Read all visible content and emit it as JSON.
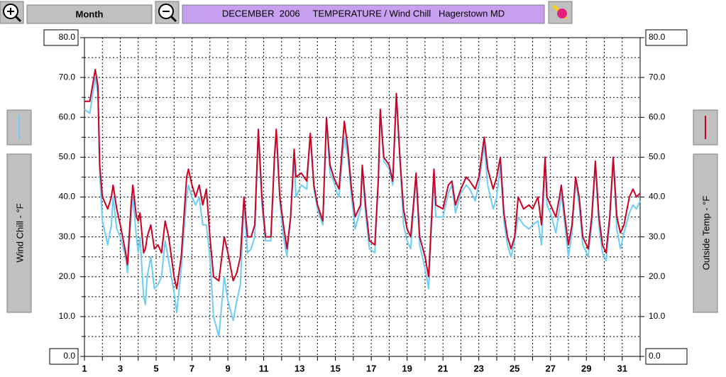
{
  "toolbar": {
    "period_button": "Month"
  },
  "chart_data": {
    "type": "line",
    "title": "DECEMBER  2006     TEMPERATURE / Wind Chill   Hagerstown MD",
    "y_axis_label": "Wind Chill - °F",
    "y2_axis_label": "Outside Temp - °F",
    "xlim": [
      1,
      32
    ],
    "xticks": [
      1,
      3,
      5,
      7,
      9,
      11,
      13,
      15,
      17,
      19,
      21,
      23,
      25,
      27,
      29,
      31
    ],
    "x_minor_ticks": [
      2,
      4,
      6,
      8,
      10,
      12,
      14,
      16,
      18,
      20,
      22,
      24,
      26,
      28,
      30,
      32
    ],
    "ylim": [
      0,
      80
    ],
    "yticks": [
      {
        "value": 0,
        "label": "0.0"
      },
      {
        "value": 10,
        "label": "10.0"
      },
      {
        "value": 20,
        "label": "20.0"
      },
      {
        "value": 30,
        "label": "30.0"
      },
      {
        "value": 40,
        "label": "40.0"
      },
      {
        "value": 50,
        "label": "50.0"
      },
      {
        "value": 60,
        "label": "60.0"
      },
      {
        "value": 70,
        "label": "70.0"
      },
      {
        "value": 80,
        "label": "80.0"
      }
    ],
    "y_minor_ticks": [
      5,
      15,
      25,
      35,
      45,
      55,
      65,
      75
    ],
    "y2lim": [
      0,
      80
    ],
    "y2ticks": [
      {
        "value": 0,
        "label": "0.0"
      },
      {
        "value": 10,
        "label": "10.0"
      },
      {
        "value": 20,
        "label": "20.0"
      },
      {
        "value": 30,
        "label": "30.0"
      },
      {
        "value": 40,
        "label": "40.0"
      },
      {
        "value": 50,
        "label": "50.0"
      },
      {
        "value": 60,
        "label": "60.0"
      },
      {
        "value": 70,
        "label": "70.0"
      },
      {
        "value": 80,
        "label": "80.0"
      }
    ],
    "grid": true,
    "x": [
      1,
      1.3,
      1.6,
      1.75,
      1.85,
      2,
      2.3,
      2.5,
      2.6,
      2.8,
      3,
      3.3,
      3.4,
      3.6,
      3.7,
      3.9,
      4,
      4.1,
      4.3,
      4.4,
      4.5,
      4.7,
      4.9,
      5.1,
      5.3,
      5.5,
      5.7,
      6,
      6.15,
      6.4,
      6.7,
      6.8,
      7,
      7.2,
      7.4,
      7.6,
      7.8,
      8,
      8.2,
      8.5,
      8.8,
      9,
      9.3,
      9.5,
      9.7,
      9.9,
      10.1,
      10.3,
      10.5,
      10.7,
      10.9,
      11.1,
      11.4,
      11.6,
      11.7,
      11.9,
      12.1,
      12.3,
      12.5,
      12.7,
      12.8,
      13.1,
      13.4,
      13.6,
      13.8,
      14,
      14.3,
      14.5,
      14.7,
      14.9,
      15.1,
      15.2,
      15.5,
      15.7,
      15.9,
      16.1,
      16.4,
      16.5,
      16.7,
      16.9,
      17.2,
      17.4,
      17.5,
      17.7,
      18,
      18.2,
      18.4,
      18.6,
      18.8,
      19,
      19.2,
      19.5,
      19.7,
      20,
      20.2,
      20.4,
      20.5,
      20.6,
      21,
      21.3,
      21.5,
      21.7,
      22,
      22.3,
      22.5,
      22.8,
      23,
      23.3,
      23.5,
      23.8,
      24,
      24.2,
      24.4,
      24.6,
      24.8,
      25,
      25.2,
      25.5,
      25.8,
      26,
      26.3,
      26.5,
      26.7,
      26.8,
      27,
      27.3,
      27.5,
      27.6,
      27.8,
      28,
      28.2,
      28.4,
      28.6,
      28.8,
      29.1,
      29.3,
      29.5,
      29.7,
      29.9,
      30.1,
      30.3,
      30.5,
      30.7,
      30.9,
      31.1,
      31.4,
      31.6,
      31.8,
      32
    ],
    "series": [
      {
        "color": "#6ccdf6",
        "axis": "y",
        "values": [
          62,
          61,
          70,
          66,
          46,
          34,
          28,
          33,
          40,
          32,
          30,
          25,
          21,
          35,
          40,
          30,
          26,
          30,
          15,
          13,
          20,
          25,
          17,
          18,
          20,
          29,
          24,
          16,
          11,
          22,
          40,
          43,
          40,
          38,
          40,
          33,
          33,
          25,
          10,
          5,
          20,
          14,
          9,
          14,
          18,
          38,
          26,
          27,
          30,
          56,
          38,
          29,
          29,
          49,
          56,
          39,
          30,
          25,
          35,
          50,
          40,
          43,
          42,
          55,
          42,
          37,
          33,
          59,
          46,
          44,
          41,
          40,
          55,
          50,
          40,
          32,
          37,
          46,
          35,
          27,
          26,
          44,
          61,
          49,
          47,
          43,
          65,
          49,
          33,
          29,
          27,
          45,
          28,
          22,
          17,
          36,
          45,
          35,
          35,
          41,
          43,
          36,
          41,
          43,
          42,
          39,
          43,
          53,
          43,
          37,
          40,
          48,
          34,
          28,
          25,
          29,
          35,
          33,
          32,
          33,
          34,
          28,
          49,
          38,
          36,
          31,
          37,
          41,
          33,
          25,
          31,
          44,
          38,
          28,
          25,
          33,
          48,
          33,
          26,
          24,
          33,
          49,
          32,
          27,
          31,
          36,
          38,
          37,
          39
        ]
      },
      {
        "color": "#cc0022",
        "axis": "y2",
        "values": [
          64,
          64,
          72,
          68,
          48,
          40,
          37,
          40,
          43,
          37,
          33,
          26,
          23,
          38,
          43,
          35,
          34,
          36,
          26,
          27,
          30,
          33,
          27,
          28,
          26,
          34,
          30,
          20,
          17,
          25,
          45,
          47,
          43,
          40,
          43,
          38,
          42,
          30,
          20,
          19,
          30,
          26,
          19,
          21,
          25,
          40,
          30,
          30,
          33,
          57,
          40,
          30,
          30,
          50,
          57,
          40,
          33,
          27,
          35,
          52,
          45,
          46,
          44,
          56,
          43,
          38,
          34,
          60,
          48,
          45,
          43,
          42,
          59,
          52,
          42,
          35,
          38,
          48,
          37,
          29,
          28,
          45,
          62,
          50,
          48,
          44,
          66,
          50,
          37,
          32,
          30,
          46,
          30,
          25,
          20,
          38,
          47,
          38,
          37,
          43,
          44,
          38,
          42,
          45,
          44,
          42,
          45,
          55,
          47,
          42,
          45,
          50,
          36,
          30,
          27,
          30,
          40,
          37,
          38,
          37,
          40,
          33,
          50,
          40,
          38,
          35,
          40,
          43,
          35,
          28,
          33,
          45,
          40,
          30,
          27,
          35,
          49,
          35,
          28,
          26,
          35,
          50,
          35,
          31,
          33,
          40,
          42,
          40,
          41
        ]
      }
    ]
  }
}
